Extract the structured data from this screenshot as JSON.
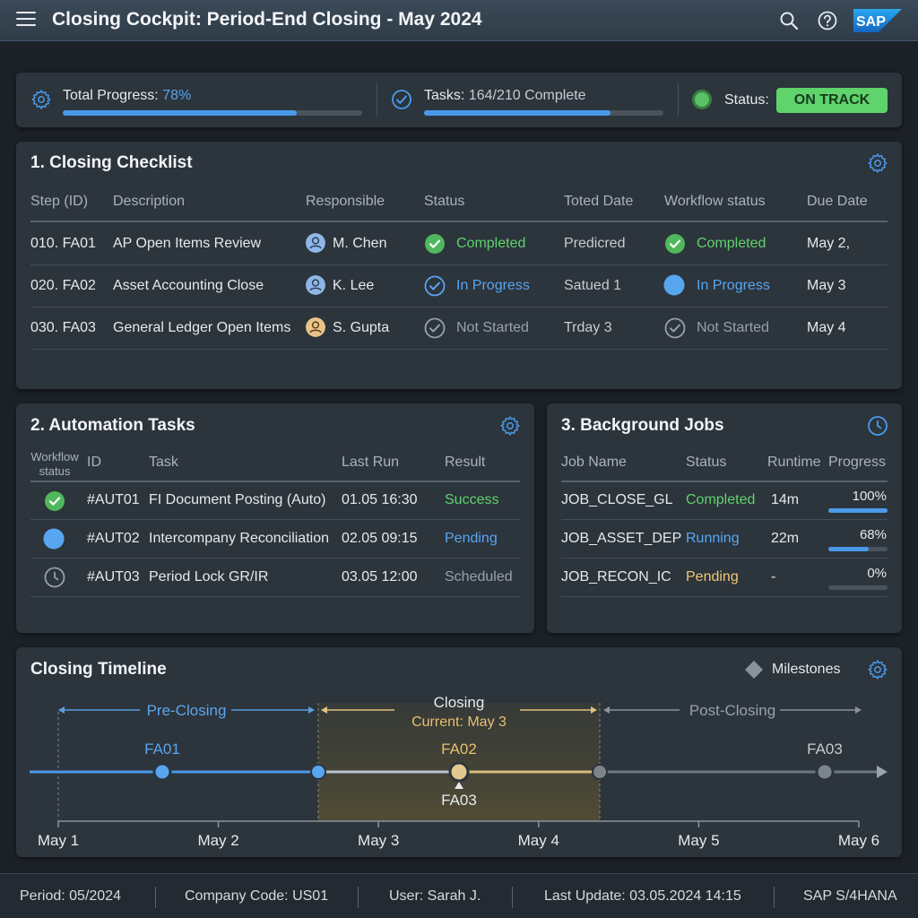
{
  "header": {
    "title": "Closing Cockpit: Period-End Closing - May 2024",
    "logo_text": "SAP",
    "icons": [
      "menu-icon",
      "search-icon",
      "help-icon",
      "sap-logo"
    ]
  },
  "summary": {
    "progress_label": "Total Progress:",
    "progress_value": "78%",
    "progress_fraction": 0.78,
    "tasks_label": "Tasks:",
    "tasks_value": "164/210 Complete",
    "tasks_fraction": 0.78,
    "status_label": "Status:",
    "status_value": "ON TRACK"
  },
  "checklist": {
    "title": "1. Closing Checklist",
    "columns": [
      "Step (ID)",
      "Description",
      "Responsible",
      "Status",
      "Toted Date",
      "Workflow status",
      "Due Date"
    ],
    "rows": [
      {
        "step": "010. FA01",
        "description": "AP Open Items Review",
        "responsible": "M. Chen",
        "status": "Completed",
        "toted": "Predicred",
        "workflow": "Completed",
        "due": "May 2,"
      },
      {
        "step": "020. FA02",
        "description": "Asset Accounting Close",
        "responsible": "K. Lee",
        "status": "In Progress",
        "toted": "Satued 1",
        "workflow": "In Progress",
        "due": "May 3"
      },
      {
        "step": "030. FA03",
        "description": "General Ledger Open Items",
        "responsible": "S. Gupta",
        "status": "Not Started",
        "toted": "Trday 3",
        "workflow": "Not Started",
        "due": "May 4"
      }
    ]
  },
  "automation": {
    "title": "2. Automation Tasks",
    "columns": [
      "Workflow status",
      "ID",
      "Task",
      "Last Run",
      "Result"
    ],
    "col0_line1": "Workflow",
    "col0_line2": "status",
    "rows": [
      {
        "id": "#AUT01",
        "task": "FI Document Posting (Auto)",
        "last_run": "01.05 16:30",
        "result": "Success"
      },
      {
        "id": "#AUT02",
        "task": "Intercompany Reconciliation",
        "last_run": "02.05 09:15",
        "result": "Pending"
      },
      {
        "id": "#AUT03",
        "task": "Period Lock GR/IR",
        "last_run": "03.05 12:00",
        "result": "Scheduled"
      }
    ]
  },
  "jobs": {
    "title": "3. Background Jobs",
    "columns": [
      "Job Name",
      "Status",
      "Runtime",
      "Progress"
    ],
    "rows": [
      {
        "name": "JOB_CLOSE_GL",
        "status": "Completed",
        "runtime": "14m",
        "progress": "100%",
        "fraction": 1.0
      },
      {
        "name": "JOB_ASSET_DEP",
        "status": "Running",
        "runtime": "22m",
        "progress": "68%",
        "fraction": 0.68
      },
      {
        "name": "JOB_RECON_IC",
        "status": "Pending",
        "runtime": "-",
        "progress": "0%",
        "fraction": 0.0
      }
    ]
  },
  "timeline": {
    "title": "Closing Timeline",
    "legend": "Milestones",
    "phase_pre": "Pre-Closing",
    "phase_closing": "Closing",
    "phase_current": "Current: May 3",
    "phase_post": "Post-Closing",
    "milestones": [
      "FA01",
      "FA02",
      "FA03",
      "FA03"
    ],
    "dates": [
      "May 1",
      "May 2",
      "May 3",
      "May 4",
      "May 5",
      "May 6"
    ]
  },
  "footer": {
    "period": "Period: 05/2024",
    "company": "Company Code: US01",
    "user": "User: Sarah J.",
    "last_update": "Last Update: 03.05.2024 14:15",
    "system": "SAP S/4HANA"
  },
  "colors": {
    "accent": "#4a9aea",
    "success": "#5fd36c",
    "warning": "#f0c870",
    "neutral": "#98a1aa"
  }
}
